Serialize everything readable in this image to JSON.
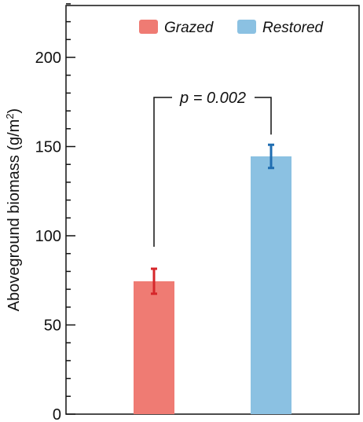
{
  "chart_data": {
    "type": "bar",
    "categories": [
      "Grazed",
      "Restored"
    ],
    "series": [
      {
        "name": "Grazed",
        "value": 74.5,
        "error": 7,
        "bar_color": "#EF7B73",
        "error_color": "#D6262A"
      },
      {
        "name": "Restored",
        "value": 144.5,
        "error": 6.5,
        "bar_color": "#8BC1E2",
        "error_color": "#1F6DB1"
      }
    ],
    "ylabel": "Aboveground biomass (g/m",
    "ylabel_superscript": "2",
    "ylabel_suffix": ")",
    "ylim": [
      0,
      230
    ],
    "yticks": [
      0,
      50,
      100,
      150,
      200
    ],
    "yticks_minor_step": 10,
    "grid": false,
    "legend": {
      "position": "top-right",
      "entries": [
        "Grazed",
        "Restored"
      ]
    },
    "annotation": {
      "text": "p = 0.002"
    }
  }
}
